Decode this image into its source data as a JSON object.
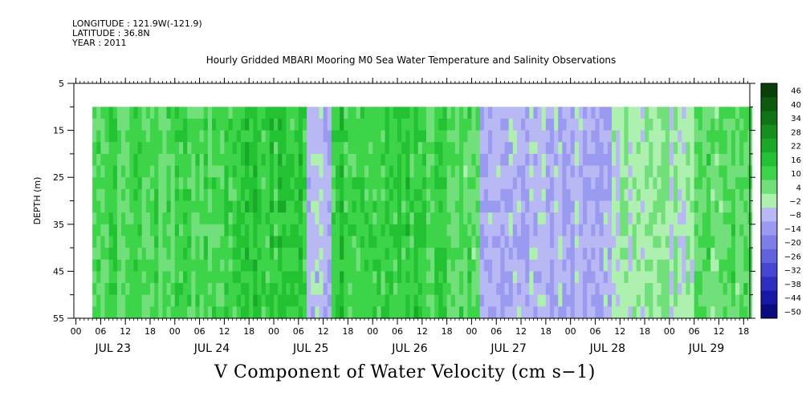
{
  "header": {
    "longitude": "LONGITUDE : 121.9W(-121.9)",
    "latitude": "LATITUDE : 36.8N",
    "year": "YEAR : 2011"
  },
  "title": "Hourly Gridded MBARI Mooring M0 Sea Water Temperature and Salinity Observations",
  "bottom_label": "V Component of Water Velocity (cm s−1)",
  "chart_data": {
    "type": "heatmap",
    "title": "Hourly Gridded MBARI Mooring M0 Sea Water Temperature and Salinity Observations",
    "xlabel": "",
    "ylabel": "DEPTH (m)",
    "variable": "V Component of Water Velocity (cm s−1)",
    "y_range": [
      5,
      55
    ],
    "y_inverted": true,
    "y_ticks": [
      5,
      15,
      25,
      35,
      45,
      55
    ],
    "data_depth_range": [
      10,
      55
    ],
    "x_hour_ticks": [
      "00",
      "06",
      "12",
      "18",
      "00",
      "06",
      "12",
      "18",
      "00",
      "06",
      "12",
      "18",
      "00",
      "06",
      "12",
      "18",
      "00",
      "06",
      "12",
      "18",
      "00",
      "06",
      "12",
      "18",
      "00",
      "06",
      "12",
      "18"
    ],
    "x_day_labels": [
      "JUL 23",
      "JUL 24",
      "JUL 25",
      "JUL 26",
      "JUL 27",
      "JUL 28",
      "JUL 29"
    ],
    "x_start_hour_offset": -0.5,
    "x_total_hours": 164,
    "data_start_hour": 4,
    "colorbar": {
      "labels": [
        "46",
        "40",
        "34",
        "28",
        "22",
        "16",
        "10",
        "4",
        "−2",
        "−8",
        "−14",
        "−20",
        "−26",
        "−32",
        "−38",
        "−44",
        "−50"
      ],
      "levels": [
        46,
        40,
        34,
        28,
        22,
        16,
        10,
        4,
        -2,
        -8,
        -14,
        -20,
        -26,
        -32,
        -38,
        -44,
        -50
      ],
      "range": [
        -50,
        52
      ]
    },
    "regions": [
      {
        "start_hour": 4,
        "end_hour": 36,
        "approx_v": 12
      },
      {
        "start_hour": 36,
        "end_hour": 56,
        "approx_v": 16
      },
      {
        "start_hour": 56,
        "end_hour": 62,
        "approx_v": -4
      },
      {
        "start_hour": 62,
        "end_hour": 84,
        "approx_v": 16
      },
      {
        "start_hour": 84,
        "end_hour": 98,
        "approx_v": 12
      },
      {
        "start_hour": 98,
        "end_hour": 130,
        "approx_v": -6
      },
      {
        "start_hour": 130,
        "end_hour": 150,
        "approx_v": 2
      },
      {
        "start_hour": 150,
        "end_hour": 164,
        "approx_v": 10
      }
    ]
  }
}
